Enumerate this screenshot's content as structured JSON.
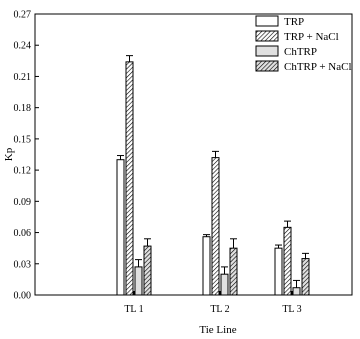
{
  "chart_data": {
    "type": "bar",
    "xlabel": "Tie Line",
    "ylabel": "Kp",
    "categories": [
      "TL 1",
      "TL 2",
      "TL 3"
    ],
    "ylim": [
      0,
      0.27
    ],
    "yticks": [
      "0.00",
      "0.03",
      "0.06",
      "0.09",
      "0.12",
      "0.15",
      "0.18",
      "0.21",
      "0.24",
      "0.27"
    ],
    "grid": false,
    "legend_position": "top-right",
    "series": [
      {
        "name": "TRP",
        "fill": "#ffffff",
        "hatch": false,
        "values": [
          0.13,
          0.056,
          0.045
        ],
        "errors": [
          0.004,
          0.002,
          0.003
        ]
      },
      {
        "name": "TRP + NaCl",
        "fill": "#ffffff",
        "hatch": true,
        "values": [
          0.224,
          0.132,
          0.065
        ],
        "errors": [
          0.006,
          0.006,
          0.006
        ]
      },
      {
        "name": "ChTRP",
        "fill": "#e0e0e0",
        "hatch": false,
        "values": [
          0.027,
          0.02,
          0.007
        ],
        "errors": [
          0.007,
          0.007,
          0.007
        ]
      },
      {
        "name": "ChTRP + NaCl",
        "fill": "#e0e0e0",
        "hatch": true,
        "values": [
          0.047,
          0.045,
          0.035
        ],
        "errors": [
          0.007,
          0.009,
          0.005
        ]
      }
    ]
  }
}
